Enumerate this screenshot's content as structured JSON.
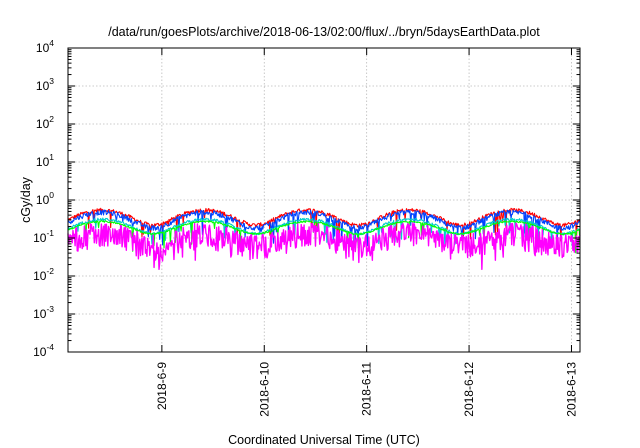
{
  "chart_data": {
    "type": "line",
    "title": "/data/run/goesPlots/archive/2018-06-13/02:00/flux/../bryn/5daysEarthData.plot",
    "xlabel": "Coordinated Universal Time (UTC)",
    "ylabel": "cGy/day",
    "y_scale": "log",
    "ylim": [
      0.0001,
      10000
    ],
    "y_ticks": [
      {
        "value": 0.0001,
        "base": "10",
        "exp": "-4"
      },
      {
        "value": 0.001,
        "base": "10",
        "exp": "-3"
      },
      {
        "value": 0.01,
        "base": "10",
        "exp": "-2"
      },
      {
        "value": 0.1,
        "base": "10",
        "exp": "-1"
      },
      {
        "value": 1,
        "base": "10",
        "exp": "0"
      },
      {
        "value": 10,
        "base": "10",
        "exp": "1"
      },
      {
        "value": 100,
        "base": "10",
        "exp": "2"
      },
      {
        "value": 1000,
        "base": "10",
        "exp": "3"
      },
      {
        "value": 10000,
        "base": "10",
        "exp": "4"
      }
    ],
    "xlim": [
      "2018-06-08 02:00",
      "2018-06-13 02:00"
    ],
    "x_ticks": [
      {
        "value": "2018-06-09 00:00",
        "label": "2018-6-9"
      },
      {
        "value": "2018-06-10 00:00",
        "label": "2018-6-10"
      },
      {
        "value": "2018-06-11 00:00",
        "label": "2018-6-11"
      },
      {
        "value": "2018-06-12 00:00",
        "label": "2018-6-12"
      },
      {
        "value": "2018-06-13 00:00",
        "label": "2018-6-13"
      }
    ],
    "grid": true,
    "legend": "none",
    "series": [
      {
        "color": "#ff0000",
        "base": 0.38,
        "amp": 0.18,
        "noise": 0.12,
        "dip": 0.05
      },
      {
        "color": "#0044ff",
        "base": 0.33,
        "amp": 0.16,
        "noise": 0.15,
        "dip": 0.1
      },
      {
        "color": "#00cccc",
        "base": 0.22,
        "amp": 0.1,
        "noise": 0.08,
        "dip": 0.05
      },
      {
        "color": "#00ff00",
        "base": 0.2,
        "amp": 0.08,
        "noise": 0.05,
        "dip": 0.03
      },
      {
        "color": "#ff00ff",
        "base": 0.15,
        "amp": 0.06,
        "noise": 0.25,
        "dip": 0.55
      }
    ]
  }
}
